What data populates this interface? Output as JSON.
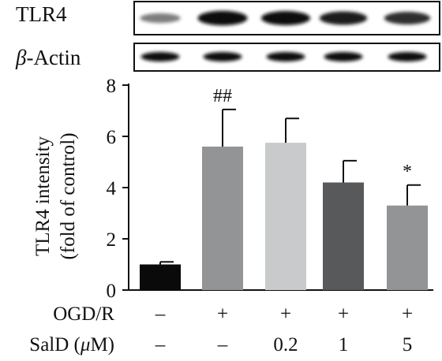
{
  "blot": {
    "rows": [
      {
        "label_italic": "",
        "label": "TLR4",
        "band_intensity": [
          0.35,
          1.0,
          0.95,
          0.85,
          0.75
        ]
      },
      {
        "label_italic": "β",
        "label": "-Actin",
        "band_intensity": [
          0.9,
          0.9,
          0.9,
          0.9,
          0.9
        ]
      }
    ]
  },
  "chart_data": {
    "type": "bar",
    "ylabel_lines": [
      "TLR4 intensity",
      "(fold of control)"
    ],
    "xlabel": "",
    "ylim": [
      0,
      8
    ],
    "yticks": [
      "0",
      "2",
      "4",
      "6",
      "8"
    ],
    "values": [
      1.0,
      5.6,
      5.75,
      4.2,
      3.3
    ],
    "errors": [
      0.1,
      1.45,
      0.95,
      0.85,
      0.8
    ],
    "annotations": [
      "",
      "##",
      "",
      "",
      "*"
    ],
    "bar_colors": [
      "#0a0a0a",
      "#939496",
      "#c9cacc",
      "#58595b",
      "#939496"
    ]
  },
  "conditions": {
    "rows": [
      {
        "label": "OGD/R",
        "unit_italic": "",
        "unit_rest": "",
        "values": [
          "–",
          "+",
          "+",
          "+",
          "+"
        ]
      },
      {
        "label": "SalD (",
        "unit_italic": "μ",
        "unit_rest": "M)",
        "values": [
          "–",
          "–",
          "0.2",
          "1",
          "5"
        ]
      }
    ]
  }
}
